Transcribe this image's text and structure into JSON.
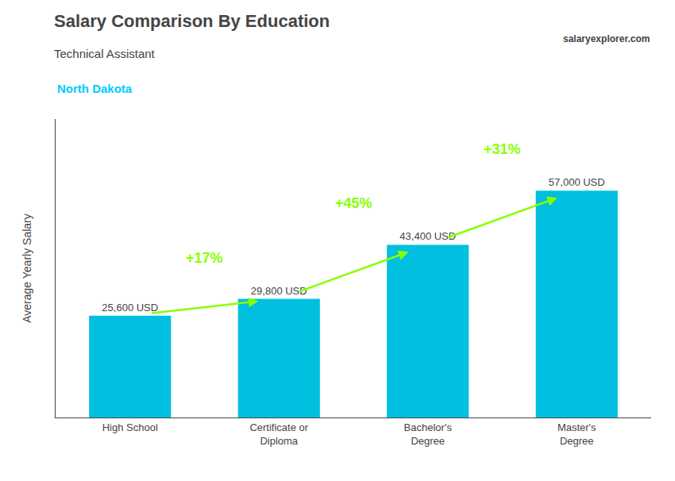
{
  "chart_data": {
    "type": "bar",
    "title": "Salary Comparison By Education",
    "subtitle": "Technical Assistant",
    "ylabel": "Average Yearly Salary",
    "categories": [
      "High School",
      "Certificate or\nDiploma",
      "Bachelor's\nDegree",
      "Master's\nDegree"
    ],
    "values": [
      25600,
      29800,
      43400,
      57000
    ],
    "value_labels": [
      "25,600 USD",
      "29,800 USD",
      "43,400 USD",
      "57,000 USD"
    ],
    "data_labels": true,
    "color": "#00bfdf",
    "ylim": [
      0,
      75000
    ],
    "tick_labels": "x",
    "grid": false,
    "annotations": [
      {
        "text": "North Dakota",
        "color": "#00ccff"
      },
      {
        "text": "salaryexplorer.com"
      },
      {
        "text": "+17%",
        "between": [
          "High School",
          "Certificate or\nDiploma"
        ],
        "color": "#88ff00"
      },
      {
        "text": "+45%",
        "between": [
          "Certificate or\nDiploma",
          "Bachelor's\nDegree"
        ],
        "color": "#88ff00"
      },
      {
        "text": "+31%",
        "between": [
          "Bachelor's\nDegree",
          "Master's\nDegree"
        ],
        "color": "#88ff00"
      }
    ]
  }
}
